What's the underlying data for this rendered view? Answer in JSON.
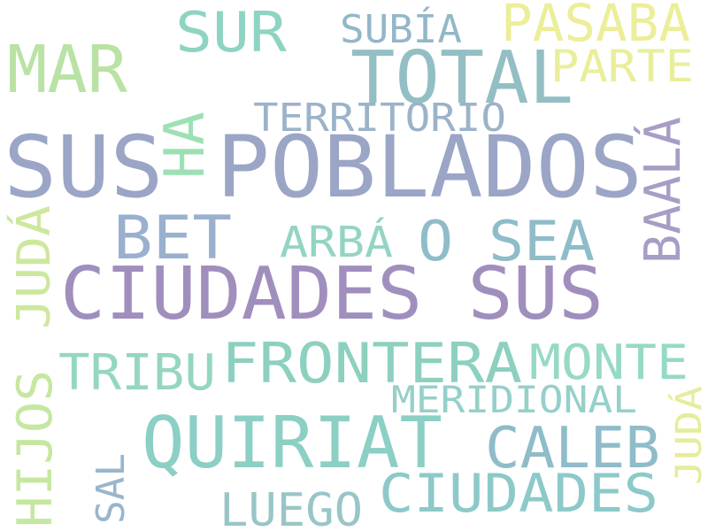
{
  "words": [
    {
      "text": "SUS POBLADOS",
      "color": "#9ba5c6"
    },
    {
      "text": "CIUDADES SUS",
      "color": "#a08fbd"
    },
    {
      "text": "TOTAL",
      "color": "#93bfc4"
    },
    {
      "text": "QUIRIAT",
      "color": "#8ccfc4"
    },
    {
      "text": "FRONTERA",
      "color": "#8dd0bf"
    },
    {
      "text": "CIUDADES",
      "color": "#8dc9c9"
    },
    {
      "text": "MAR",
      "color": "#b9e2a4"
    },
    {
      "text": "BET",
      "color": "#9ab0cf"
    },
    {
      "text": "O SEA",
      "color": "#8fbcc9"
    },
    {
      "text": "SUR",
      "color": "#8ed4c2"
    },
    {
      "text": "PASABA",
      "color": "#ecee99"
    },
    {
      "text": "PARTE",
      "color": "#eaee9a"
    },
    {
      "text": "SUBÍA",
      "color": "#92b7c9"
    },
    {
      "text": "TERRITORIO",
      "color": "#9bb3c9"
    },
    {
      "text": "HA",
      "color": "#9de0b4"
    },
    {
      "text": "BAALÁ",
      "color": "#a89dc5"
    },
    {
      "text": "ARBÁ",
      "color": "#94d4c4"
    },
    {
      "text": "JUDÁ",
      "color": "#cde89d"
    },
    {
      "text": "TRIBU",
      "color": "#95d6c1"
    },
    {
      "text": "MONTE",
      "color": "#96d9c6"
    },
    {
      "text": "MERIDIONAL",
      "color": "#95d0c9"
    },
    {
      "text": "CALEB",
      "color": "#8fbcc8"
    },
    {
      "text": "HIJOS",
      "color": "#c6e7a0"
    },
    {
      "text": "SAL",
      "color": "#98b6cd"
    },
    {
      "text": "LUEGO",
      "color": "#9ac5c7"
    },
    {
      "text": "JUDÁ",
      "color": "#e6ec99"
    }
  ]
}
